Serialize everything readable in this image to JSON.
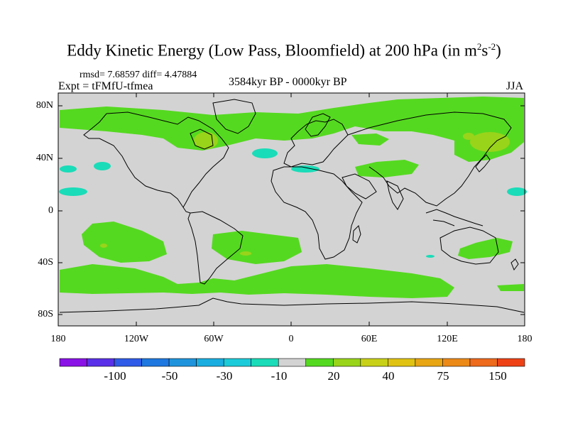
{
  "title": {
    "main": "Eddy Kinetic Energy (Low Pass, Bloomfield) at 200 hPa (in m",
    "sup1": "2",
    "mid": "s",
    "sup2": "-2",
    "close": ")"
  },
  "stats": {
    "rmsd_line": "rmsd= 7.68597 diff= 4.47884",
    "expt": "Expt = tFMfU-tfmea",
    "period": "3584kyr BP - 0000kyr BP",
    "season": "JJA"
  },
  "map": {
    "lat_labels": [
      "80N",
      "40N",
      "0",
      "40S",
      "80S"
    ],
    "lon_labels": [
      "180",
      "120W",
      "60W",
      "0",
      "60E",
      "120E",
      "180"
    ],
    "background_color": "#d3d3d3"
  },
  "colorbar": {
    "colors": [
      "#8a12e6",
      "#5a30e8",
      "#2f5be8",
      "#1f78e0",
      "#1f94dc",
      "#1aaee0",
      "#1ccbd9",
      "#1adcb8",
      "#d3d3d3",
      "#55d920",
      "#99d41a",
      "#c8d118",
      "#e0c312",
      "#e8a614",
      "#ec8a18",
      "#ee6a1c",
      "#ee4216"
    ],
    "labels": [
      "-100",
      "-50",
      "-30",
      "-10",
      "20",
      "40",
      "75",
      "150"
    ]
  }
}
